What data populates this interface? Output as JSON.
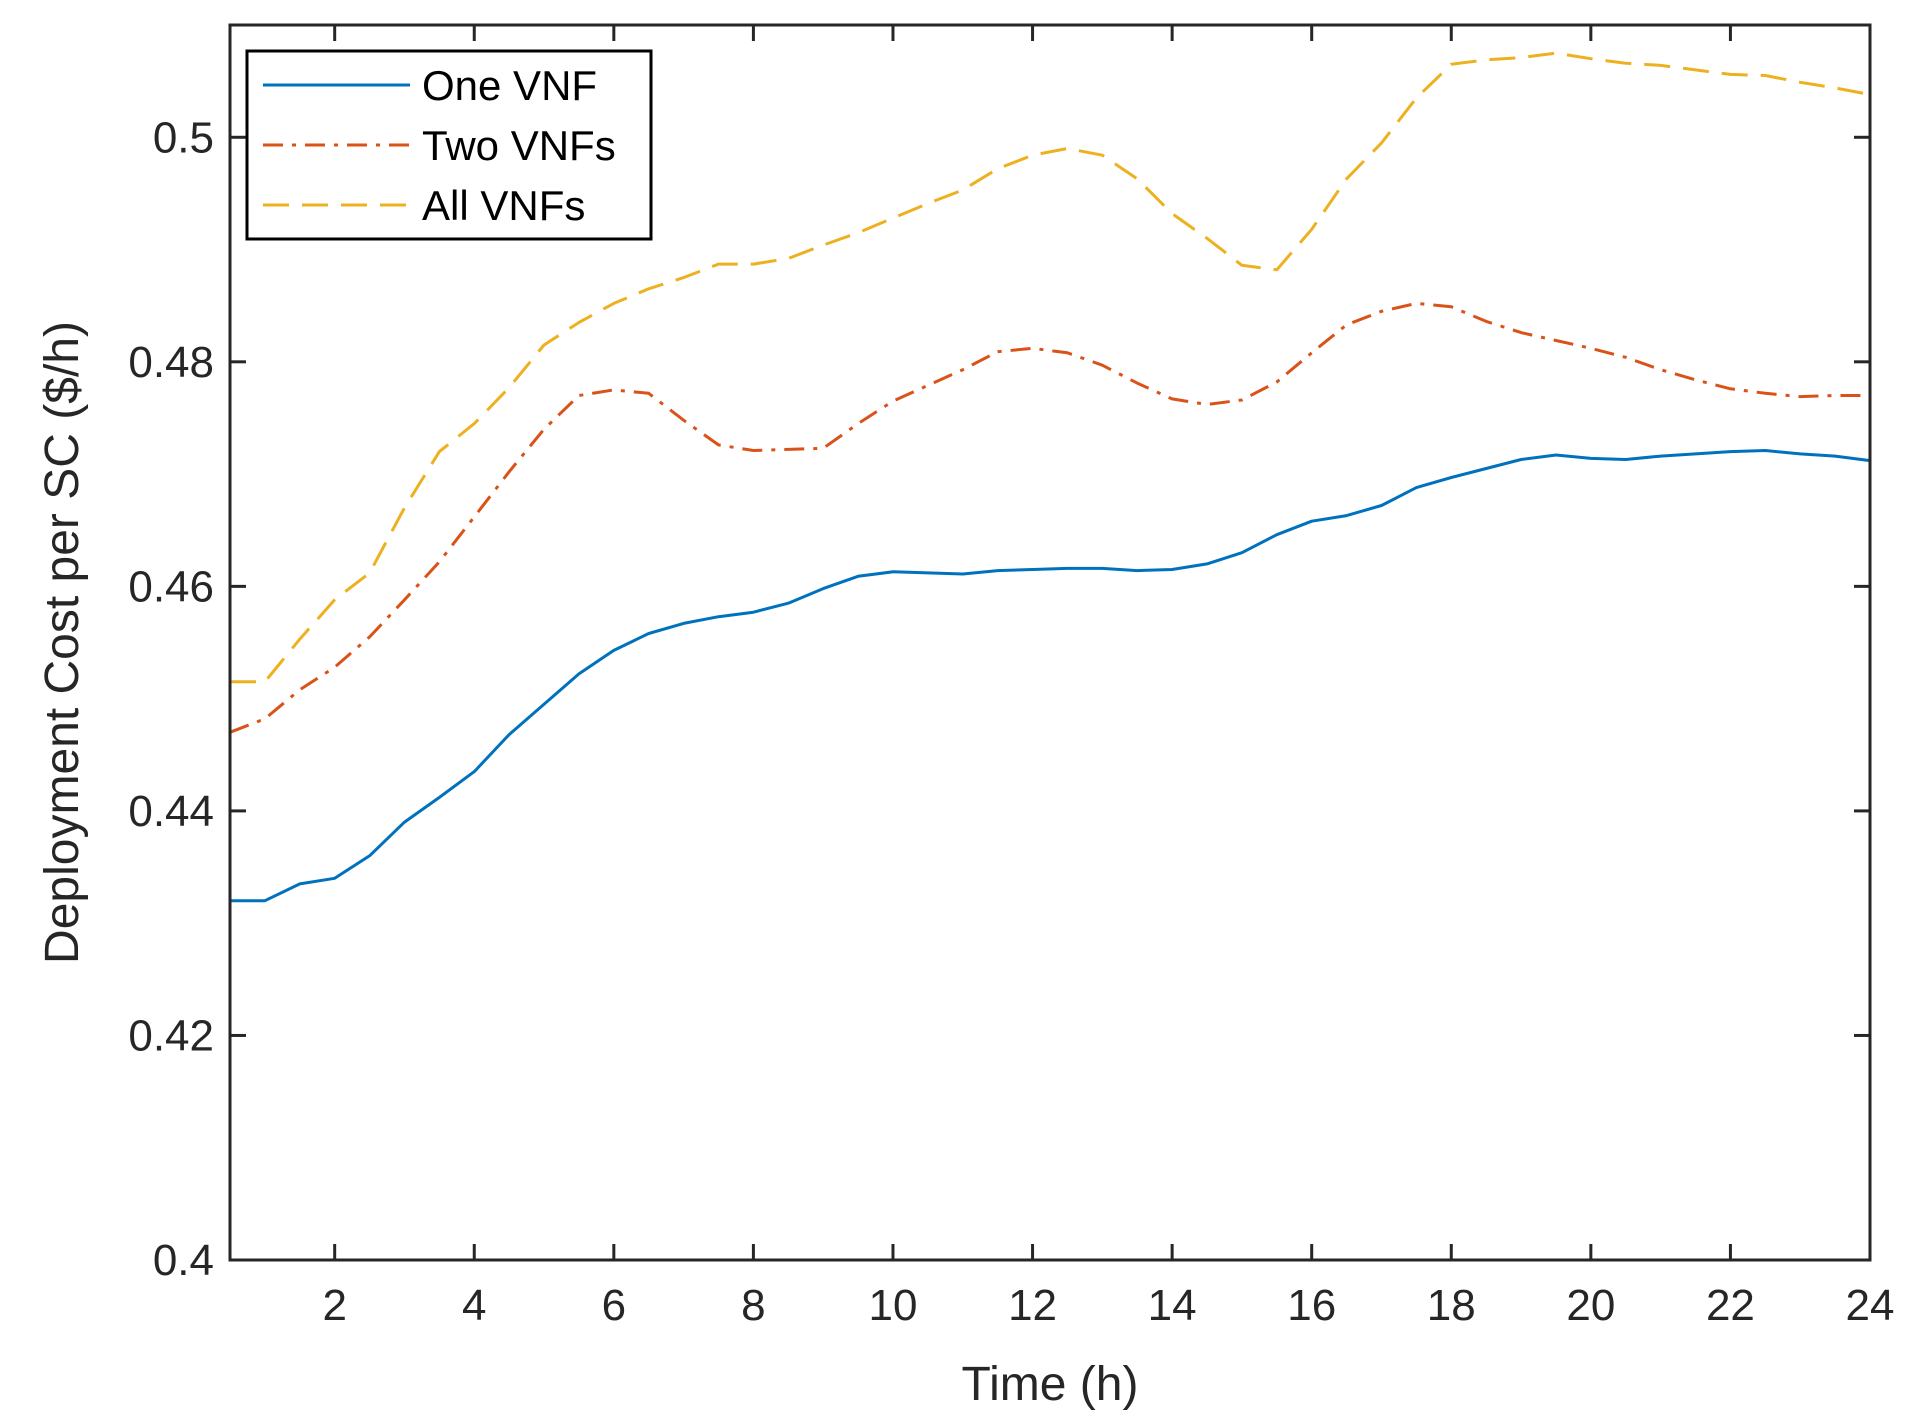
{
  "chart_data": {
    "type": "line",
    "title": "",
    "xlabel": "Time (h)",
    "ylabel": "Deployment Cost per SC ($/h)",
    "xlim": [
      0.5,
      24
    ],
    "ylim": [
      0.4,
      0.51
    ],
    "xticks": [
      2,
      4,
      6,
      8,
      10,
      12,
      14,
      16,
      18,
      20,
      22,
      24
    ],
    "xtick_labels": [
      "2",
      "4",
      "6",
      "8",
      "10",
      "12",
      "14",
      "16",
      "18",
      "20",
      "22",
      "24"
    ],
    "yticks": [
      0.4,
      0.42,
      0.44,
      0.46,
      0.48,
      0.5
    ],
    "ytick_labels": [
      "0.4",
      "0.42",
      "0.44",
      "0.46",
      "0.48",
      "0.5"
    ],
    "grid": false,
    "legend_position": "top-left",
    "x": [
      0.5,
      1,
      1.5,
      2,
      2.5,
      3,
      3.5,
      4,
      4.5,
      5,
      5.5,
      6,
      6.5,
      7,
      7.5,
      8,
      8.5,
      9,
      9.5,
      10,
      10.5,
      11,
      11.5,
      12,
      12.5,
      13,
      13.5,
      14,
      14.5,
      15,
      15.5,
      16,
      16.5,
      17,
      17.5,
      18,
      18.5,
      19,
      19.5,
      20,
      20.5,
      21,
      21.5,
      22,
      22.5,
      23,
      23.5,
      24
    ],
    "series": [
      {
        "name": "One VNF",
        "color": "#0072BD",
        "style": "solid",
        "values": [
          0.432,
          0.432,
          0.4335,
          0.434,
          0.436,
          0.439,
          0.4412,
          0.4435,
          0.4468,
          0.4495,
          0.4522,
          0.4543,
          0.4558,
          0.4567,
          0.4573,
          0.4577,
          0.4585,
          0.4598,
          0.4609,
          0.4613,
          0.4612,
          0.4611,
          0.4614,
          0.4615,
          0.4616,
          0.4616,
          0.4614,
          0.4615,
          0.462,
          0.463,
          0.4646,
          0.4658,
          0.4663,
          0.4672,
          0.4688,
          0.4697,
          0.4705,
          0.4713,
          0.4717,
          0.4714,
          0.4713,
          0.4716,
          0.4718,
          0.472,
          0.4721,
          0.4718,
          0.4716,
          0.4712
        ]
      },
      {
        "name": "Two VNFs",
        "color": "#D95319",
        "style": "dashdot",
        "values": [
          0.447,
          0.4482,
          0.4508,
          0.4528,
          0.4555,
          0.4588,
          0.4622,
          0.4662,
          0.4702,
          0.474,
          0.477,
          0.4775,
          0.4772,
          0.4748,
          0.4726,
          0.4721,
          0.4722,
          0.4723,
          0.4745,
          0.4765,
          0.4779,
          0.4793,
          0.4809,
          0.4812,
          0.4808,
          0.4797,
          0.4781,
          0.4767,
          0.4762,
          0.4766,
          0.4782,
          0.4808,
          0.4833,
          0.4845,
          0.4852,
          0.4849,
          0.4836,
          0.4826,
          0.4819,
          0.4812,
          0.4804,
          0.4793,
          0.4784,
          0.4776,
          0.4772,
          0.4769,
          0.477,
          0.477
        ]
      },
      {
        "name": "All VNFs",
        "color": "#EDB120",
        "style": "dashed",
        "values": [
          0.4515,
          0.4515,
          0.4553,
          0.4588,
          0.4612,
          0.467,
          0.472,
          0.4745,
          0.4777,
          0.4815,
          0.4835,
          0.4852,
          0.4865,
          0.4875,
          0.4887,
          0.4887,
          0.4892,
          0.4904,
          0.4915,
          0.4928,
          0.4941,
          0.4953,
          0.4972,
          0.4984,
          0.499,
          0.4984,
          0.4963,
          0.4932,
          0.491,
          0.4886,
          0.4882,
          0.4918,
          0.4963,
          0.4995,
          0.5035,
          0.5065,
          0.5069,
          0.5071,
          0.5075,
          0.507,
          0.5066,
          0.5064,
          0.506,
          0.5056,
          0.5055,
          0.5049,
          0.5044,
          0.5038
        ]
      }
    ]
  }
}
